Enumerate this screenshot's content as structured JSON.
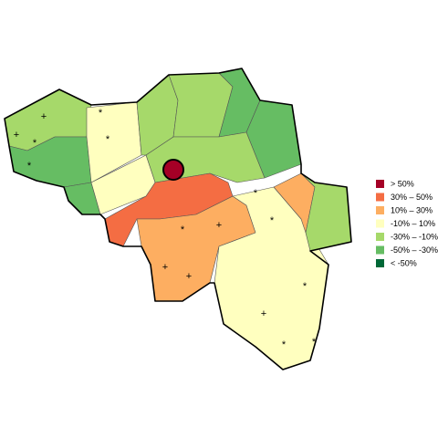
{
  "legend": {
    "items": [
      {
        "label": "> 50%",
        "color": "#a50026"
      },
      {
        "label": "30%  –  50%",
        "color": "#f46d43"
      },
      {
        "label": "10%  –  30%",
        "color": "#fdae61"
      },
      {
        "label": "-10%  –  10%",
        "color": "#ffffbf"
      },
      {
        "label": "-30%  –  -10%",
        "color": "#a6d96a"
      },
      {
        "label": "-50%  –  -30%",
        "color": "#66bd63"
      },
      {
        "label": "< -50%",
        "color": "#006837"
      }
    ]
  },
  "markers": [
    "+",
    "+",
    "*",
    "*",
    "*",
    "*",
    "*",
    "*",
    "*",
    "+",
    "+",
    "+",
    "+",
    "*",
    "*",
    "*"
  ]
}
